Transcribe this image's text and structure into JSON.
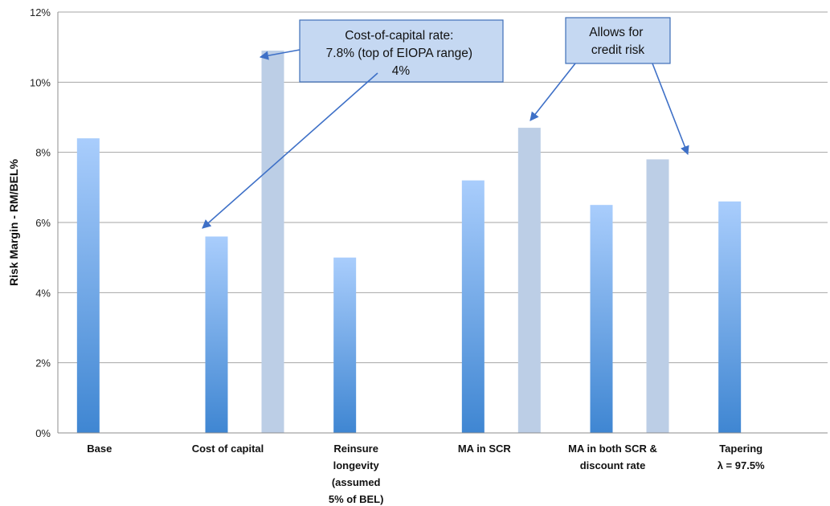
{
  "chart_data": {
    "type": "bar",
    "ylabel": "Risk Margin - RM/BEL%",
    "ylim": [
      0,
      12
    ],
    "yticks": [
      "0%",
      "2%",
      "4%",
      "6%",
      "8%",
      "10%",
      "12%"
    ],
    "grid": true,
    "categories": [
      [
        "Base"
      ],
      [
        "Cost of capital"
      ],
      [
        "Reinsure",
        "longevity",
        "(assumed",
        "5% of BEL)"
      ],
      [
        "MA in SCR"
      ],
      [
        "MA in both SCR &",
        "discount  rate"
      ],
      [
        "Tapering",
        "λ = 97.5%"
      ]
    ],
    "series": [
      {
        "values": [
          8.4,
          5.6,
          5.0,
          7.2,
          6.5,
          6.6
        ]
      },
      {
        "values": [
          null,
          10.9,
          null,
          8.7,
          7.8,
          null
        ]
      }
    ],
    "annotations": [
      {
        "lines": [
          "Cost-of-capital rate:",
          "7.8% (top of EIOPA range)",
          "4%"
        ]
      },
      {
        "lines": [
          "Allows for",
          "credit risk"
        ]
      }
    ]
  },
  "colors": {
    "bar_primary_top": "#a9cdfc",
    "bar_primary_bottom": "#3f86d2",
    "bar_secondary": "#bccee6",
    "annotation_fill": "#c5d8f2",
    "annotation_stroke": "#3e6fb8",
    "arrow": "#3e70c7",
    "grid": "#a6a6a6"
  }
}
